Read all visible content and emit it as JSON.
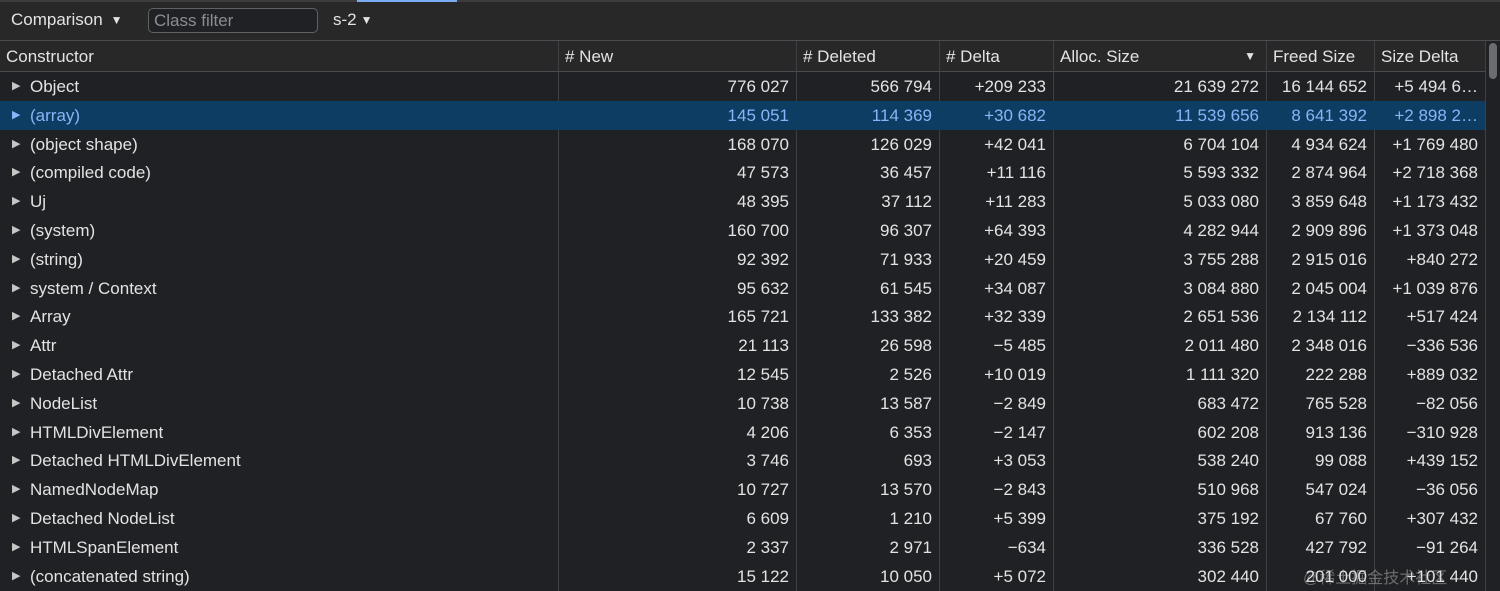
{
  "toolbar": {
    "view_label": "Comparison",
    "filter_placeholder": "Class filter",
    "snapshot_label": "s-2"
  },
  "columns": [
    "Constructor",
    "# New",
    "# Deleted",
    "# Delta",
    "Alloc. Size",
    "Freed Size",
    "Size Delta"
  ],
  "sort_indicator": "▼",
  "rows": [
    [
      "Object",
      "776 027",
      "566 794",
      "+209 233",
      "21 639 272",
      "16 144 652",
      "+5 494 6…"
    ],
    [
      "(array)",
      "145 051",
      "114 369",
      "+30 682",
      "11 539 656",
      "8 641 392",
      "+2 898 2…"
    ],
    [
      "(object shape)",
      "168 070",
      "126 029",
      "+42 041",
      "6 704 104",
      "4 934 624",
      "+1 769 480"
    ],
    [
      "(compiled code)",
      "47 573",
      "36 457",
      "+11 116",
      "5 593 332",
      "2 874 964",
      "+2 718 368"
    ],
    [
      "Uj",
      "48 395",
      "37 112",
      "+11 283",
      "5 033 080",
      "3 859 648",
      "+1 173 432"
    ],
    [
      "(system)",
      "160 700",
      "96 307",
      "+64 393",
      "4 282 944",
      "2 909 896",
      "+1 373 048"
    ],
    [
      "(string)",
      "92 392",
      "71 933",
      "+20 459",
      "3 755 288",
      "2 915 016",
      "+840 272"
    ],
    [
      "system / Context",
      "95 632",
      "61 545",
      "+34 087",
      "3 084 880",
      "2 045 004",
      "+1 039 876"
    ],
    [
      "Array",
      "165 721",
      "133 382",
      "+32 339",
      "2 651 536",
      "2 134 112",
      "+517 424"
    ],
    [
      "Attr",
      "21 113",
      "26 598",
      "−5 485",
      "2 011 480",
      "2 348 016",
      "−336 536"
    ],
    [
      "Detached Attr",
      "12 545",
      "2 526",
      "+10 019",
      "1 111 320",
      "222 288",
      "+889 032"
    ],
    [
      "NodeList",
      "10 738",
      "13 587",
      "−2 849",
      "683 472",
      "765 528",
      "−82 056"
    ],
    [
      "HTMLDivElement",
      "4 206",
      "6 353",
      "−2 147",
      "602 208",
      "913 136",
      "−310 928"
    ],
    [
      "Detached HTMLDivElement",
      "3 746",
      "693",
      "+3 053",
      "538 240",
      "99 088",
      "+439 152"
    ],
    [
      "NamedNodeMap",
      "10 727",
      "13 570",
      "−2 843",
      "510 968",
      "547 024",
      "−36 056"
    ],
    [
      "Detached NodeList",
      "6 609",
      "1 210",
      "+5 399",
      "375 192",
      "67 760",
      "+307 432"
    ],
    [
      "HTMLSpanElement",
      "2 337",
      "2 971",
      "−634",
      "336 528",
      "427 792",
      "−91 264"
    ],
    [
      "(concatenated string)",
      "15 122",
      "10 050",
      "+5 072",
      "302 440",
      "201 000",
      "+101 440"
    ]
  ],
  "selected_row_index": 1,
  "watermark": "@稀土掘金技术社区",
  "colors": {
    "background": "#202124",
    "header_bg": "#282828",
    "selected_row_bg": "#0e3d63",
    "selected_row_text": "#8ab4f8",
    "accent": "#7cacf8"
  }
}
